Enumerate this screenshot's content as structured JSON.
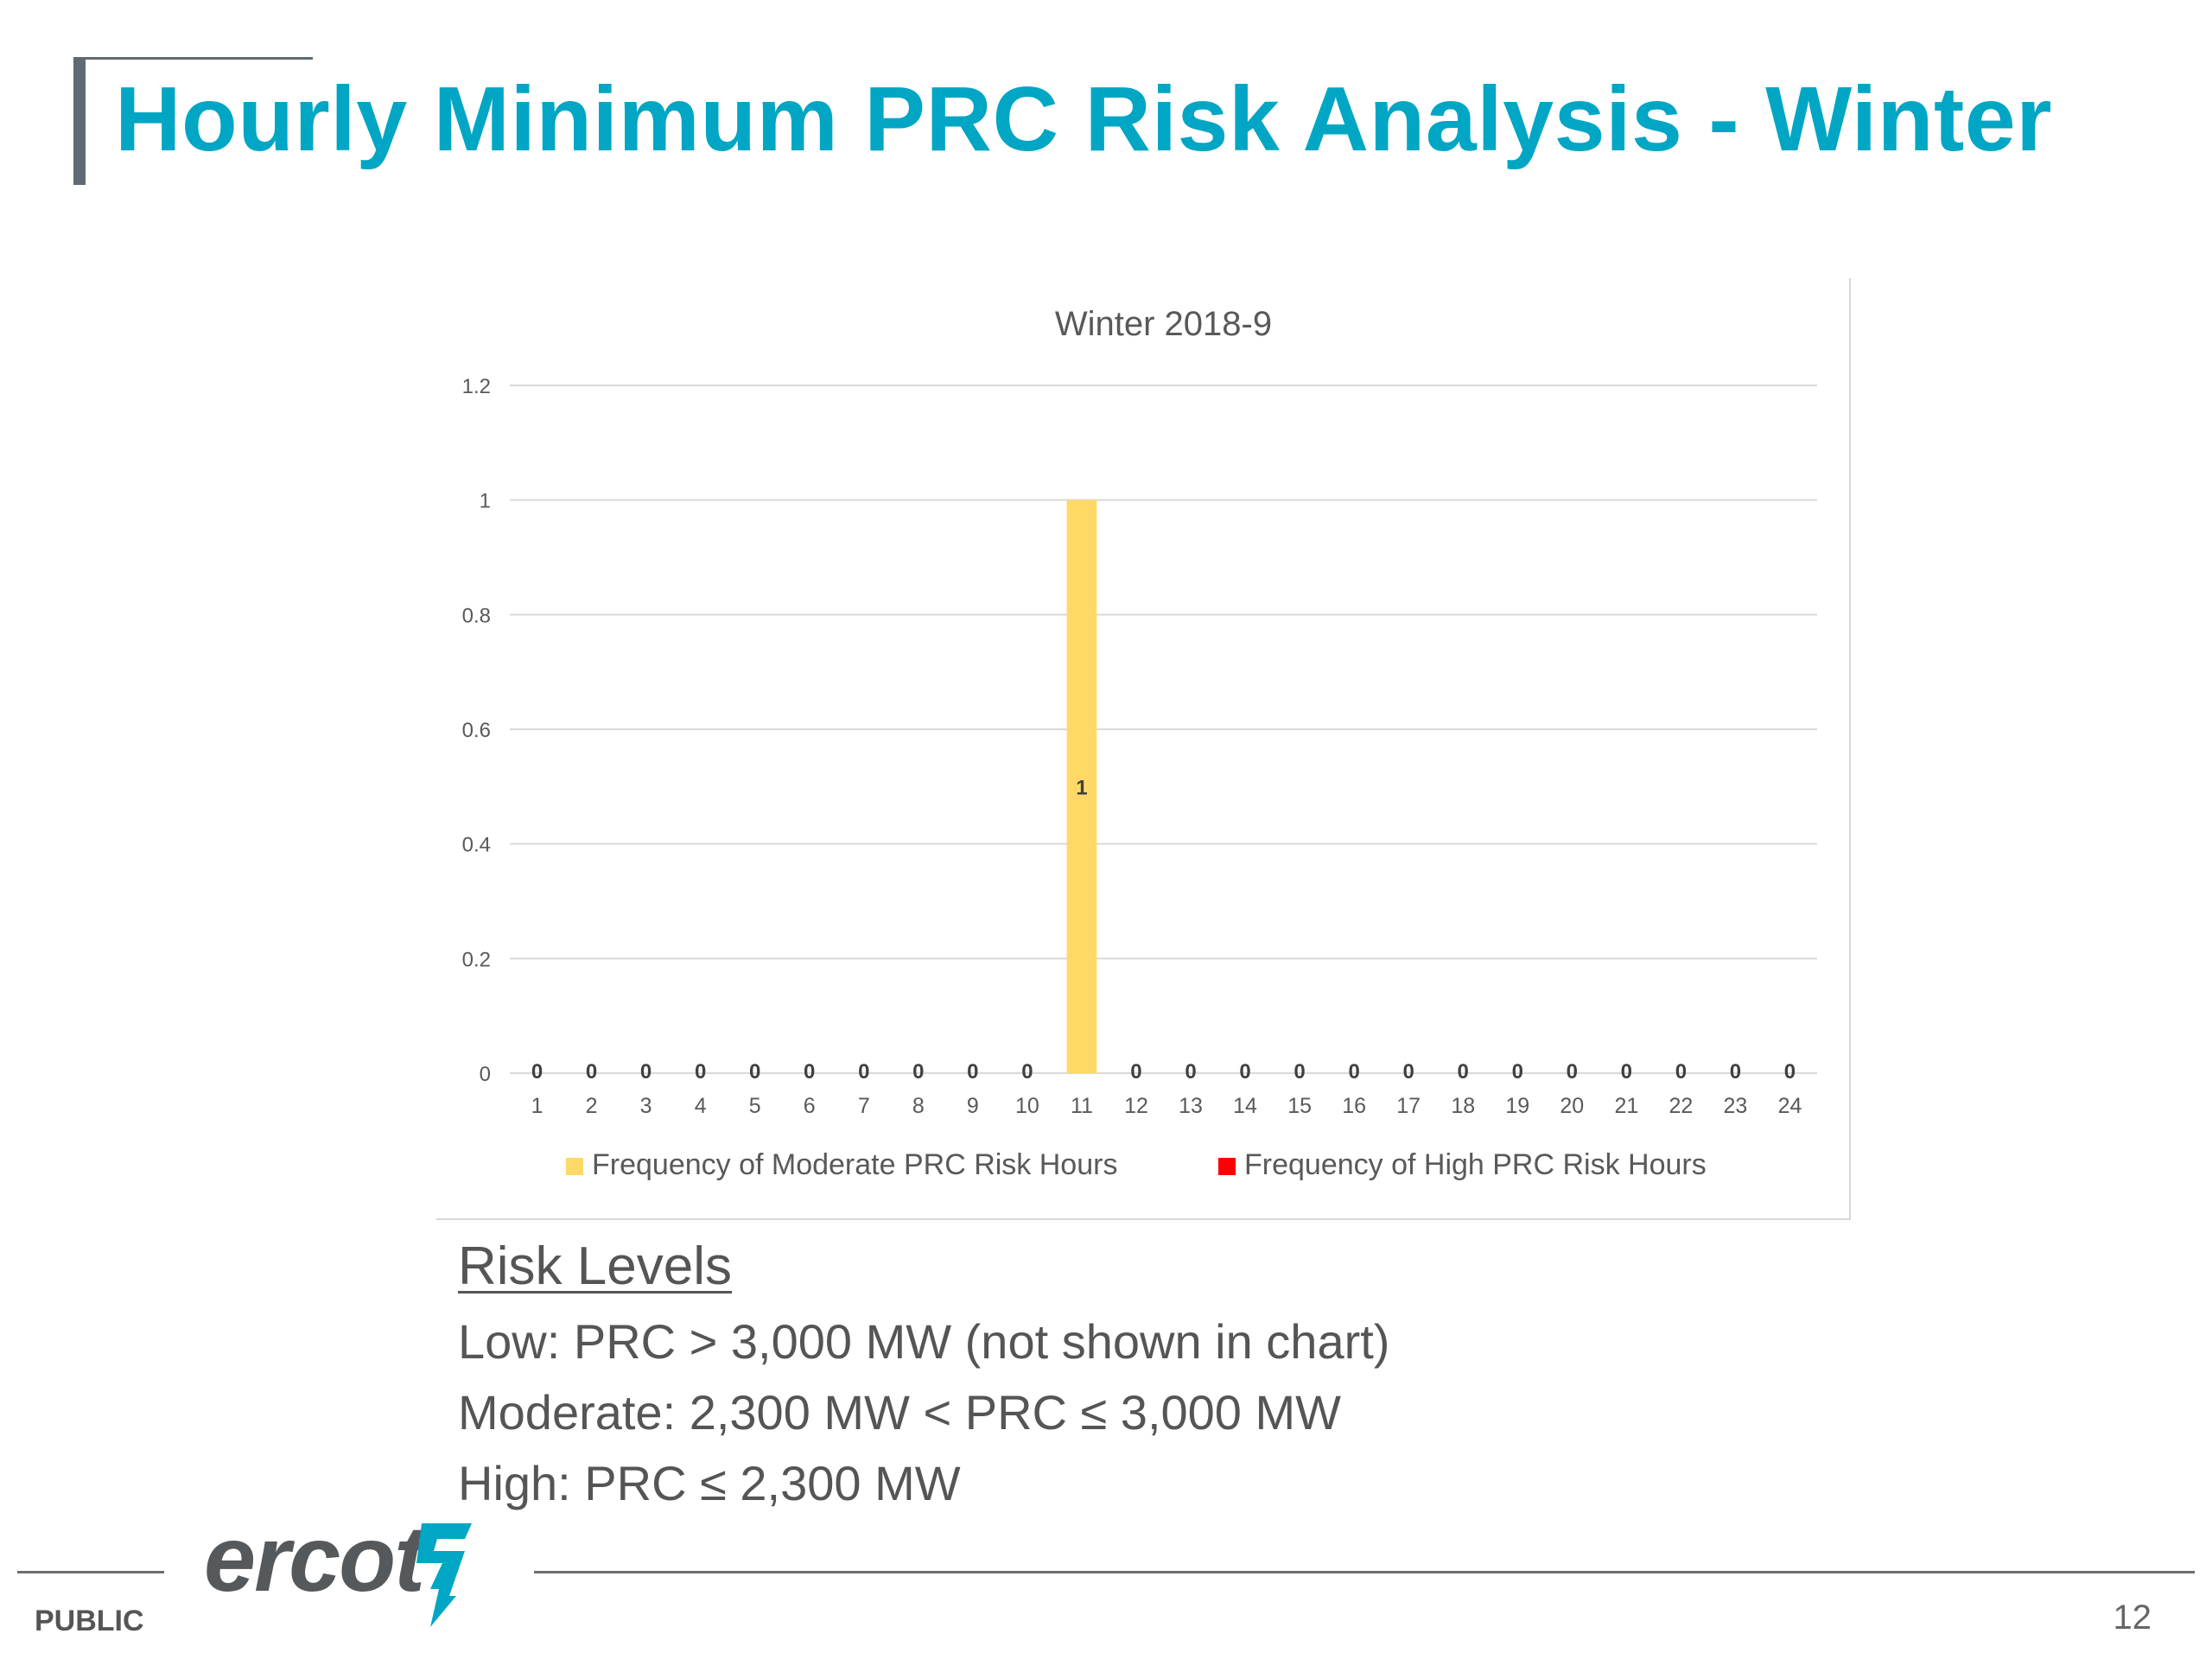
{
  "slide": {
    "title": "Hourly Minimum PRC Risk Analysis - Winter",
    "classification": "PUBLIC",
    "page_number": "12",
    "logo_text": "ercot"
  },
  "risk_levels": {
    "heading": "Risk Levels",
    "low": "Low: PRC > 3,000 MW (not shown in chart)",
    "moderate": "Moderate: 2,300 MW < PRC ≤ 3,000 MW",
    "high": "High: PRC ≤ 2,300 MW"
  },
  "chart_data": {
    "type": "bar",
    "title": "Winter 2018-9",
    "xlabel": "",
    "ylabel": "",
    "ylim": [
      0,
      1.2
    ],
    "y_ticks": [
      "0",
      "0.2",
      "0.4",
      "0.6",
      "0.8",
      "1",
      "1.2"
    ],
    "grid": true,
    "legend_position": "bottom",
    "categories": [
      "1",
      "2",
      "3",
      "4",
      "5",
      "6",
      "7",
      "8",
      "9",
      "10",
      "11",
      "12",
      "13",
      "14",
      "15",
      "16",
      "17",
      "18",
      "19",
      "20",
      "21",
      "22",
      "23",
      "24"
    ],
    "series": [
      {
        "name": "Frequency of Moderate PRC Risk Hours",
        "color": "#ffd966",
        "values": [
          0,
          0,
          0,
          0,
          0,
          0,
          0,
          0,
          0,
          0,
          1,
          0,
          0,
          0,
          0,
          0,
          0,
          0,
          0,
          0,
          0,
          0,
          0,
          0
        ]
      },
      {
        "name": "Frequency of High PRC Risk Hours",
        "color": "#ff0000",
        "values": [
          0,
          0,
          0,
          0,
          0,
          0,
          0,
          0,
          0,
          0,
          0,
          0,
          0,
          0,
          0,
          0,
          0,
          0,
          0,
          0,
          0,
          0,
          0,
          0
        ]
      }
    ],
    "data_labels": [
      "0",
      "0",
      "0",
      "0",
      "0",
      "0",
      "0",
      "0",
      "0",
      "0",
      "1",
      "0",
      "0",
      "0",
      "0",
      "0",
      "0",
      "0",
      "0",
      "0",
      "0",
      "0",
      "0",
      "0"
    ]
  }
}
